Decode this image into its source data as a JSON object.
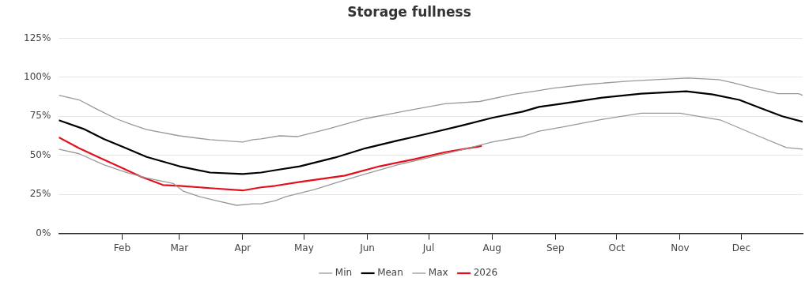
{
  "chart_data": {
    "type": "line",
    "title": "Storage fullness",
    "xlim": [
      "--01-01",
      "--12-31"
    ],
    "xticks": [
      {
        "value": "--02-01",
        "label": "Feb"
      },
      {
        "value": "--03-01",
        "label": "Mar"
      },
      {
        "value": "--04-01",
        "label": "Apr"
      },
      {
        "value": "--05-01",
        "label": "May"
      },
      {
        "value": "--06-01",
        "label": "Jun"
      },
      {
        "value": "--07-01",
        "label": "Jul"
      },
      {
        "value": "--08-01",
        "label": "Aug"
      },
      {
        "value": "--09-01",
        "label": "Sep"
      },
      {
        "value": "--10-01",
        "label": "Oct"
      },
      {
        "value": "--11-01",
        "label": "Nov"
      },
      {
        "value": "--12-01",
        "label": "Dec"
      }
    ],
    "ylim": [
      0,
      125
    ],
    "yticks": [
      {
        "value": 0,
        "label": "0%"
      },
      {
        "value": 25,
        "label": "25%"
      },
      {
        "value": 50,
        "label": "50%"
      },
      {
        "value": 75,
        "label": "75%"
      },
      {
        "value": 100,
        "label": "100%"
      },
      {
        "value": 125,
        "label": "125%"
      }
    ],
    "grid": "y",
    "legend": "bottom",
    "marker": "none",
    "line_style": "solid",
    "series": [
      {
        "name": "Min",
        "color": "#999999",
        "x": [
          "--01-01",
          "--01-11",
          "--01-23",
          "--02-03",
          "--02-13",
          "--02-26",
          "--03-03",
          "--03-11",
          "--03-19",
          "--03-29",
          "--04-06",
          "--04-10",
          "--04-17",
          "--04-22",
          "--05-06",
          "--05-18",
          "--05-31",
          "--06-16",
          "--07-01",
          "--07-17",
          "--08-01",
          "--08-16",
          "--08-24",
          "--09-04",
          "--09-24",
          "--10-13",
          "--11-01",
          "--11-21",
          "--12-10",
          "--12-23",
          "--12-31"
        ],
        "values": [
          54,
          51,
          44,
          39,
          35.5,
          32,
          27,
          23.5,
          21,
          18,
          19,
          19,
          21,
          23.5,
          28,
          33,
          38,
          44,
          48.5,
          53.5,
          58.5,
          62,
          65.5,
          68,
          73,
          77,
          77,
          72.5,
          62,
          55,
          54
        ]
      },
      {
        "name": "Mean",
        "color": "#000000",
        "x": [
          "--01-01",
          "--01-13",
          "--01-23",
          "--02-03",
          "--02-13",
          "--03-01",
          "--03-16",
          "--04-01",
          "--04-10",
          "--04-17",
          "--04-29",
          "--05-16",
          "--05-31",
          "--06-16",
          "--07-01",
          "--07-17",
          "--08-01",
          "--08-16",
          "--08-24",
          "--09-04",
          "--09-24",
          "--10-13",
          "--11-04",
          "--11-17",
          "--11-30",
          "--12-10",
          "--12-21",
          "--12-31"
        ],
        "values": [
          72.5,
          67,
          60.5,
          54.5,
          49,
          43,
          39,
          38,
          39,
          40.5,
          43,
          48.5,
          54.5,
          59.5,
          64,
          69,
          74,
          78,
          81,
          83,
          87,
          89.5,
          91,
          89,
          85.5,
          80.5,
          75,
          71.5
        ]
      },
      {
        "name": "Max",
        "color": "#999999",
        "x": [
          "--01-01",
          "--01-11",
          "--01-19",
          "--01-29",
          "--02-05",
          "--02-13",
          "--03-01",
          "--03-16",
          "--04-01",
          "--04-06",
          "--04-10",
          "--04-19",
          "--04-28",
          "--05-13",
          "--05-31",
          "--06-20",
          "--07-09",
          "--07-26",
          "--08-11",
          "--08-24",
          "--08-31",
          "--09-17",
          "--10-06",
          "--10-20",
          "--11-05",
          "--11-20",
          "--11-27",
          "--12-07",
          "--12-19",
          "--12-29",
          "--12-31"
        ],
        "values": [
          88.5,
          85.5,
          80,
          73.5,
          70,
          66.5,
          62.5,
          60,
          58.5,
          60,
          60.5,
          62.5,
          62,
          67,
          73.5,
          78.5,
          83,
          84.5,
          89,
          91.5,
          93,
          95.5,
          97.5,
          98.5,
          99.5,
          98.5,
          96.5,
          93,
          89.5,
          89.5,
          88.5
        ]
      },
      {
        "name": "2026",
        "color": "#e3101b",
        "x": [
          "--01-01",
          "--01-11",
          "--01-21",
          "--01-31",
          "--02-10",
          "--02-21",
          "--03-01",
          "--03-16",
          "--04-01",
          "--04-10",
          "--04-17",
          "--04-29",
          "--05-21",
          "--06-07",
          "--06-24",
          "--07-09",
          "--07-27"
        ],
        "values": [
          61.5,
          54.5,
          48.5,
          42.5,
          36.5,
          31,
          30.5,
          29,
          27.5,
          29.5,
          30.5,
          33,
          37,
          43,
          47.5,
          52,
          56
        ]
      }
    ]
  }
}
